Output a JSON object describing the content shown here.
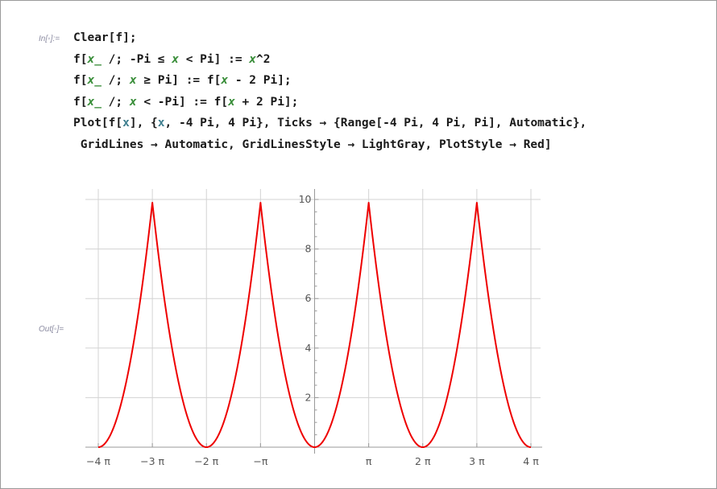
{
  "cell": {
    "in_label": "In[◦]:=",
    "out_label": "Out[◦]=",
    "code_lines": [
      [
        {
          "t": "Clear[f];"
        }
      ],
      [
        {
          "t": "f["
        },
        {
          "t": "x_",
          "c": "pat"
        },
        {
          "t": " /; -Pi ≤ "
        },
        {
          "t": "x",
          "c": "pat"
        },
        {
          "t": " < Pi] := "
        },
        {
          "t": "x",
          "c": "pat"
        },
        {
          "t": "^2"
        }
      ],
      [
        {
          "t": "f["
        },
        {
          "t": "x_",
          "c": "pat"
        },
        {
          "t": " /; "
        },
        {
          "t": "x",
          "c": "pat"
        },
        {
          "t": " ≥ Pi] := f["
        },
        {
          "t": "x",
          "c": "pat"
        },
        {
          "t": " - 2 Pi];"
        }
      ],
      [
        {
          "t": "f["
        },
        {
          "t": "x_",
          "c": "pat"
        },
        {
          "t": " /; "
        },
        {
          "t": "x",
          "c": "pat"
        },
        {
          "t": " < -Pi] := f["
        },
        {
          "t": "x",
          "c": "pat"
        },
        {
          "t": " + 2 Pi];"
        }
      ],
      [
        {
          "t": "Plot[f["
        },
        {
          "t": "x",
          "c": "var"
        },
        {
          "t": "], {"
        },
        {
          "t": "x",
          "c": "var"
        },
        {
          "t": ", -4 Pi, 4 Pi}, Ticks → {Range[-4 Pi, 4 Pi, Pi], Automatic},"
        }
      ],
      [
        {
          "t": " GridLines → Automatic, GridLinesStyle → LightGray, PlotStyle → Red]"
        }
      ]
    ]
  },
  "chart_data": {
    "type": "line",
    "title": "",
    "xlabel": "",
    "ylabel": "",
    "xlim": [
      -12.566,
      12.566
    ],
    "ylim": [
      0,
      10.2
    ],
    "x_ticks": [
      {
        "value": -12.566,
        "label": "−4 π"
      },
      {
        "value": -9.425,
        "label": "−3 π"
      },
      {
        "value": -6.283,
        "label": "−2 π"
      },
      {
        "value": -3.142,
        "label": "−π"
      },
      {
        "value": 3.142,
        "label": "π"
      },
      {
        "value": 6.283,
        "label": "2 π"
      },
      {
        "value": 9.425,
        "label": "3 π"
      },
      {
        "value": 12.566,
        "label": "4 π"
      }
    ],
    "y_ticks": [
      {
        "value": 2,
        "label": "2"
      },
      {
        "value": 4,
        "label": "4"
      },
      {
        "value": 6,
        "label": "6"
      },
      {
        "value": 8,
        "label": "8"
      },
      {
        "value": 10,
        "label": "10"
      }
    ],
    "gridlines": true,
    "series": [
      {
        "function": "f(x) = x^2 on [-π, π), periodic with period 2π",
        "period": 6.283,
        "x_range": [
          -12.566,
          12.566
        ],
        "sample_points": [
          [
            -12.566,
            0
          ],
          [
            -9.425,
            9.87
          ],
          [
            -6.283,
            0
          ],
          [
            -3.142,
            9.87
          ],
          [
            0,
            0
          ],
          [
            3.142,
            9.87
          ],
          [
            6.283,
            0
          ],
          [
            9.425,
            9.87
          ],
          [
            12.566,
            0
          ]
        ]
      }
    ],
    "colors": {
      "line": "#ee0000",
      "grid": "#d3d3d3",
      "axis": "#999999"
    }
  }
}
